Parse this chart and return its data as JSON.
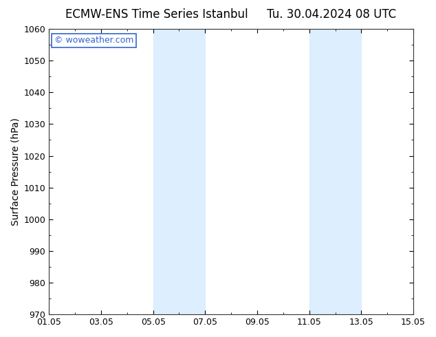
{
  "title_left": "ECMW-ENS Time Series Istanbul",
  "title_right": "Tu. 30.04.2024 08 UTC",
  "ylabel": "Surface Pressure (hPa)",
  "xlabel": "",
  "ylim": [
    970,
    1060
  ],
  "yticks": [
    970,
    980,
    990,
    1000,
    1010,
    1020,
    1030,
    1040,
    1050,
    1060
  ],
  "xtick_labels": [
    "01.05",
    "03.05",
    "05.05",
    "07.05",
    "09.05",
    "11.05",
    "13.05",
    "15.05"
  ],
  "xtick_positions": [
    0,
    2,
    4,
    6,
    8,
    10,
    12,
    14
  ],
  "x_start": 0,
  "x_end": 14,
  "shaded_bands": [
    {
      "x_start": 4,
      "x_end": 6
    },
    {
      "x_start": 10,
      "x_end": 12
    }
  ],
  "shade_color": "#ddeeff",
  "background_color": "#ffffff",
  "plot_bg_color": "#ffffff",
  "watermark_text": "© woweather.com",
  "watermark_color": "#3366cc",
  "title_fontsize": 12,
  "tick_label_fontsize": 9,
  "ylabel_fontsize": 10
}
